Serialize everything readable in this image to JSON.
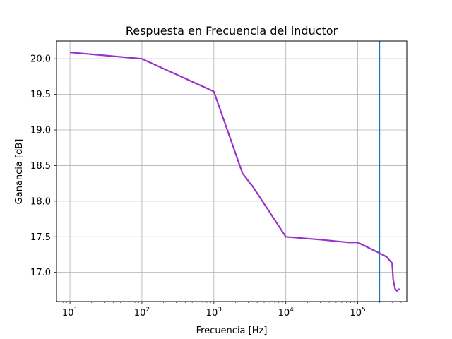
{
  "chart_data": {
    "type": "line",
    "title": "Respuesta en Frecuencia del inductor",
    "xlabel": "Frecuencia [Hz]",
    "ylabel": "Ganancia [dB]",
    "xscale": "log",
    "xlim": [
      6.5,
      480000
    ],
    "ylim": [
      16.59,
      20.25
    ],
    "grid": true,
    "x_ticks": [
      {
        "value": 10,
        "base": "10",
        "exp": "1"
      },
      {
        "value": 100,
        "base": "10",
        "exp": "2"
      },
      {
        "value": 1000,
        "base": "10",
        "exp": "3"
      },
      {
        "value": 10000,
        "base": "10",
        "exp": "4"
      },
      {
        "value": 100000,
        "base": "10",
        "exp": "5"
      }
    ],
    "y_ticks": [
      {
        "value": 17.0,
        "label": "17.0"
      },
      {
        "value": 17.5,
        "label": "17.5"
      },
      {
        "value": 18.0,
        "label": "18.0"
      },
      {
        "value": 18.5,
        "label": "18.5"
      },
      {
        "value": 19.0,
        "label": "19.0"
      },
      {
        "value": 19.5,
        "label": "19.5"
      },
      {
        "value": 20.0,
        "label": "20.0"
      }
    ],
    "series": [
      {
        "color": "#9932CC",
        "points": [
          [
            10,
            20.09
          ],
          [
            100,
            20.0
          ],
          [
            1000,
            19.54
          ],
          [
            2500,
            18.39
          ],
          [
            3500,
            18.2
          ],
          [
            10000,
            17.5
          ],
          [
            30000,
            17.46
          ],
          [
            75000,
            17.42
          ],
          [
            100000,
            17.42
          ],
          [
            200000,
            17.27
          ],
          [
            250000,
            17.22
          ],
          [
            300000,
            17.13
          ],
          [
            310000,
            16.9
          ],
          [
            330000,
            16.77
          ],
          [
            350000,
            16.74
          ],
          [
            380000,
            16.77
          ]
        ]
      }
    ],
    "vline": {
      "x": 200000,
      "color": "#1f77b4"
    }
  }
}
